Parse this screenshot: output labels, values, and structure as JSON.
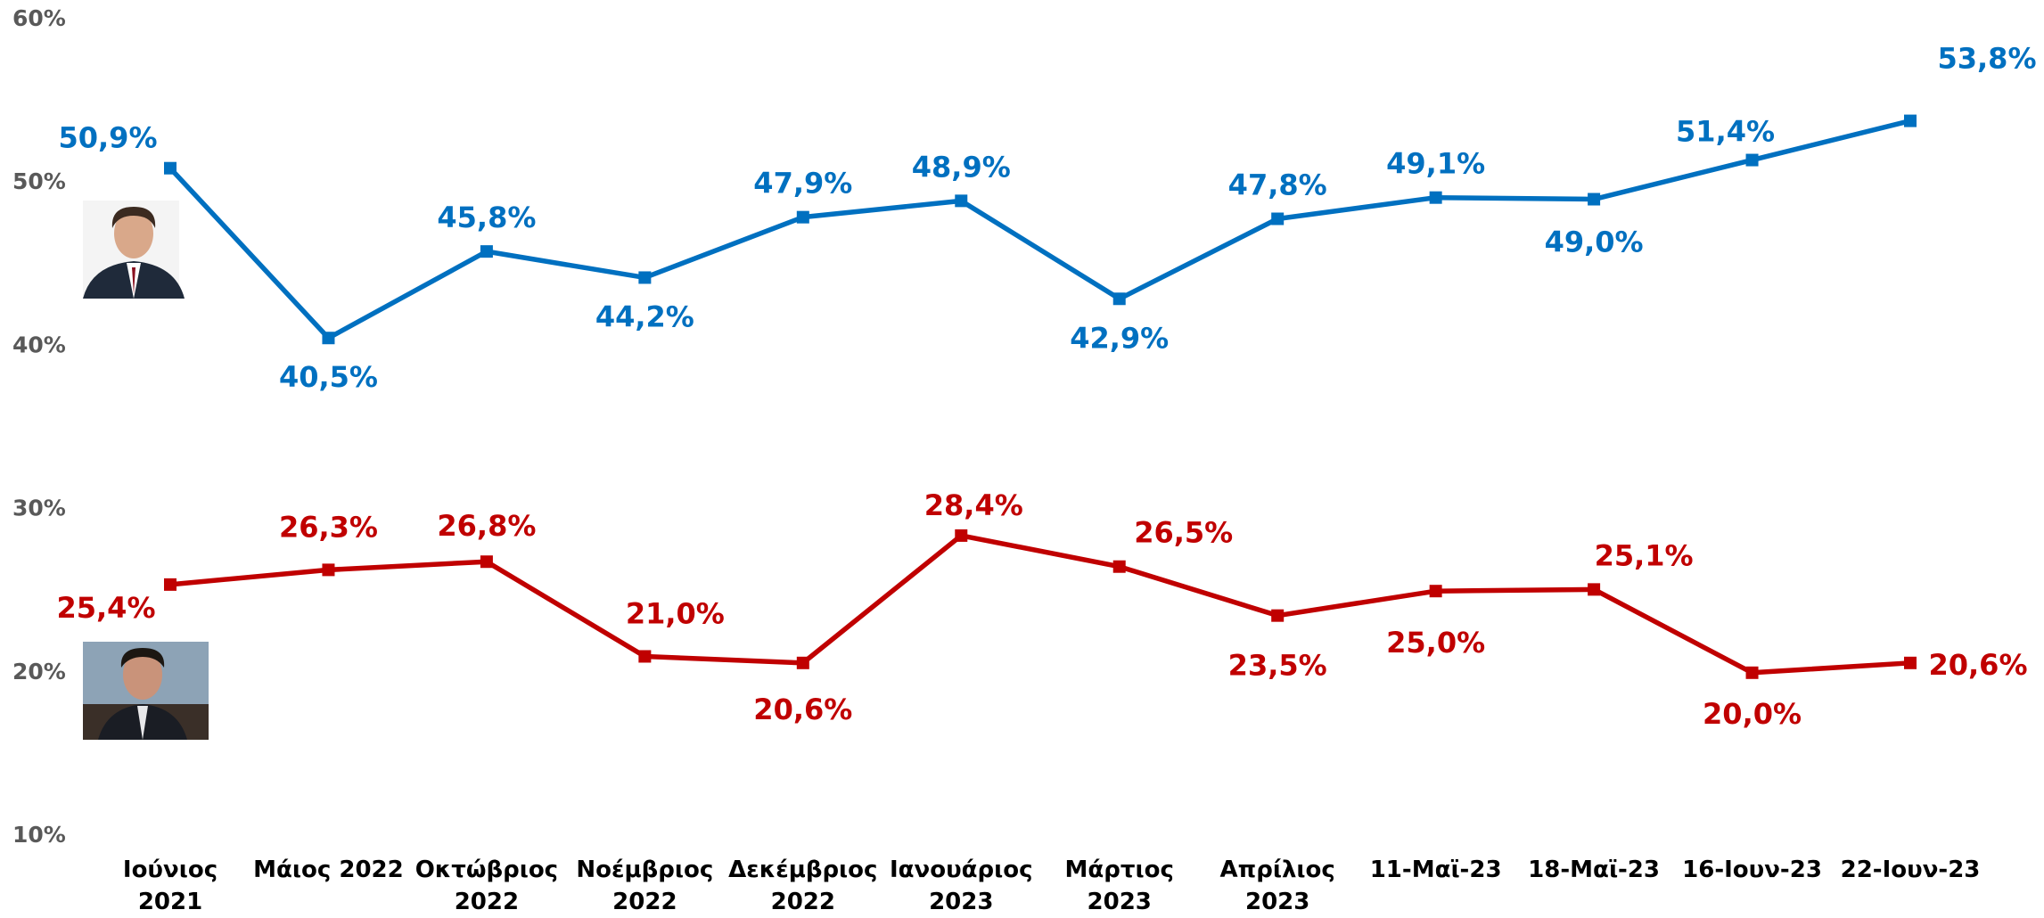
{
  "chart_data": {
    "type": "line",
    "categories": [
      "Ιούνιος\n2021",
      "Μάιος 2022",
      "Οκτώβριος\n2022",
      "Νοέμβριος\n2022",
      "Δεκέμβριος\n2022",
      "Ιανουάριος\n2023",
      "Μάρτιος\n2023",
      "Απρίλιος\n2023",
      "11-Μαϊ-23",
      "18-Μαϊ-23",
      "16-Ιουν-23",
      "22-Ιουν-23"
    ],
    "series": [
      {
        "color": "#0070c0",
        "values": [
          50.9,
          40.5,
          45.8,
          44.2,
          47.9,
          48.9,
          42.9,
          47.8,
          49.1,
          49.0,
          51.4,
          53.8
        ],
        "value_labels": [
          "50,9%",
          "40,5%",
          "45,8%",
          "44,2%",
          "47,9%",
          "48,9%",
          "42,9%",
          "47,8%",
          "49,1%",
          "49,0%",
          "51,4%",
          "53,8%"
        ]
      },
      {
        "color": "#c00000",
        "values": [
          25.4,
          26.3,
          26.8,
          21.0,
          20.6,
          28.4,
          26.5,
          23.5,
          25.0,
          25.1,
          20.0,
          20.6
        ],
        "value_labels": [
          "25,4%",
          "26,3%",
          "26,8%",
          "21,0%",
          "20,6%",
          "28,4%",
          "26,5%",
          "23,5%",
          "25,0%",
          "25,1%",
          "20,0%",
          "20,6%"
        ]
      }
    ],
    "ylim": [
      10,
      60
    ],
    "yticks": [
      {
        "value": 10,
        "label": "10%"
      },
      {
        "value": 20,
        "label": "20%"
      },
      {
        "value": 30,
        "label": "30%"
      },
      {
        "value": 40,
        "label": "40%"
      },
      {
        "value": 50,
        "label": "50%"
      },
      {
        "value": 60,
        "label": "60%"
      }
    ],
    "grid": false
  }
}
